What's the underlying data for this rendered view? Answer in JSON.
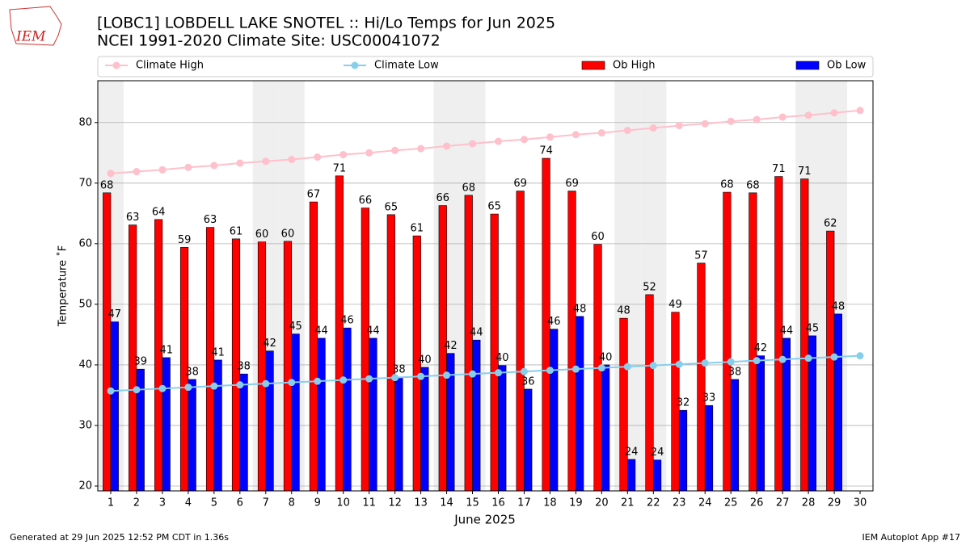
{
  "logo": "IEM",
  "footer": {
    "left": "Generated at 29 Jun 2025 12:52 PM CDT in 1.36s",
    "right": "IEM Autoplot App #17"
  },
  "chart_data": {
    "type": "bar",
    "title": "[LOBC1] LOBDELL LAKE SNOTEL :: Hi/Lo Temps for Jun 2025",
    "subtitle": "NCEI 1991-2020 Climate Site: USC00041072",
    "y_label": "Temperature ˚F",
    "x_label": "June 2025",
    "categories": [
      "1",
      "2",
      "3",
      "4",
      "5",
      "6",
      "7",
      "8",
      "9",
      "10",
      "11",
      "12",
      "13",
      "14",
      "15",
      "16",
      "17",
      "18",
      "19",
      "20",
      "21",
      "22",
      "23",
      "24",
      "25",
      "26",
      "27",
      "28",
      "29",
      "30"
    ],
    "ylim": [
      19.2,
      86.9
    ],
    "yticks": [
      20,
      30,
      40,
      50,
      60,
      70,
      80
    ],
    "grid": true,
    "series": [
      {
        "name": "Climate High",
        "type": "line",
        "color": "#ffc0cb",
        "values": [
          71.6,
          71.9,
          72.2,
          72.6,
          72.9,
          73.3,
          73.6,
          73.9,
          74.3,
          74.7,
          75.0,
          75.4,
          75.7,
          76.1,
          76.5,
          76.9,
          77.2,
          77.6,
          78.0,
          78.3,
          78.7,
          79.1,
          79.5,
          79.8,
          80.2,
          80.5,
          80.9,
          81.2,
          81.6,
          82.0
        ]
      },
      {
        "name": "Climate Low",
        "type": "line",
        "color": "#87ceeb",
        "values": [
          35.7,
          35.9,
          36.1,
          36.3,
          36.5,
          36.7,
          36.9,
          37.1,
          37.3,
          37.5,
          37.7,
          37.9,
          38.1,
          38.3,
          38.5,
          38.7,
          38.9,
          39.1,
          39.3,
          39.5,
          39.7,
          39.9,
          40.1,
          40.3,
          40.5,
          40.7,
          40.9,
          41.1,
          41.3,
          41.5
        ]
      },
      {
        "name": "Ob High",
        "type": "bar",
        "color": "#ff0000",
        "values": [
          68.4,
          63.1,
          64.0,
          59.4,
          62.7,
          60.8,
          60.3,
          60.4,
          66.9,
          71.2,
          65.9,
          64.8,
          61.3,
          66.3,
          68.0,
          64.9,
          68.7,
          74.1,
          68.7,
          59.9,
          47.7,
          51.6,
          48.7,
          56.8,
          68.5,
          68.4,
          71.1,
          70.7,
          62.1,
          null
        ],
        "value_labels": [
          "68",
          "63",
          "64",
          "59",
          "63",
          "61",
          "60",
          "60",
          "67",
          "71",
          "66",
          "65",
          "61",
          "66",
          "68",
          "65",
          "69",
          "74",
          "69",
          "60",
          "48",
          "52",
          "49",
          "57",
          "68",
          "68",
          "71",
          "71",
          "62",
          null
        ]
      },
      {
        "name": "Ob Low",
        "type": "bar",
        "color": "#0000ff",
        "values": [
          47.1,
          39.3,
          41.2,
          37.6,
          40.8,
          38.5,
          42.3,
          45.1,
          44.4,
          46.1,
          44.4,
          38.0,
          39.6,
          41.9,
          44.1,
          39.9,
          36.0,
          45.9,
          48.0,
          40.0,
          24.4,
          24.3,
          32.5,
          33.3,
          37.6,
          41.5,
          44.4,
          44.8,
          48.4,
          null
        ],
        "value_labels": [
          "47",
          "39",
          "41",
          "38",
          "41",
          "38",
          "42",
          "45",
          "44",
          "46",
          "44",
          "38",
          "40",
          "42",
          "44",
          "40",
          "36",
          "46",
          "48",
          "40",
          "24",
          "24",
          "32",
          "33",
          "38",
          "42",
          "44",
          "45",
          "48",
          null
        ]
      }
    ]
  }
}
